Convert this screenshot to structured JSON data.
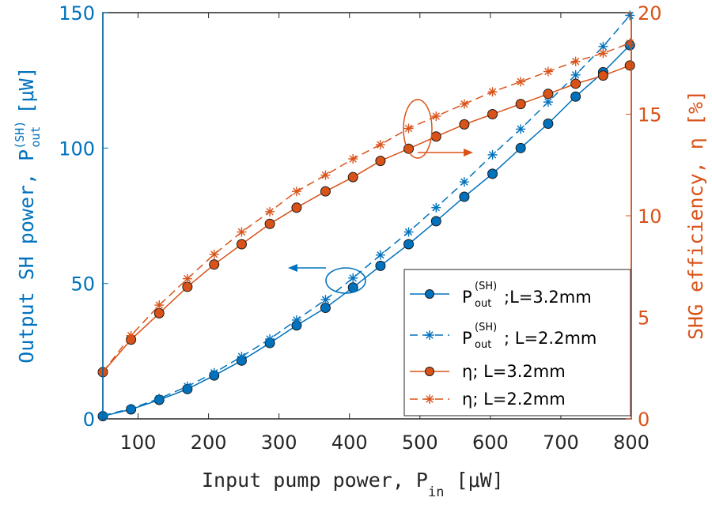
{
  "chart_data": {
    "type": "line",
    "x": [
      50,
      90,
      130,
      170,
      208,
      247,
      287,
      325,
      366,
      405,
      444,
      484,
      523,
      563,
      603,
      643,
      682,
      721,
      760,
      798
    ],
    "xlim": [
      50,
      800
    ],
    "x_ticks": [
      "100",
      "200",
      "300",
      "400",
      "500",
      "600",
      "700",
      "800"
    ],
    "y_left": {
      "lim": [
        0,
        150
      ],
      "ticks": [
        "0",
        "50",
        "100",
        "150"
      ]
    },
    "y_right": {
      "lim": [
        0,
        20
      ],
      "ticks": [
        "0",
        "5",
        "10",
        "15",
        "20"
      ]
    },
    "xlabel": {
      "main": "Input pump power, P",
      "sub": "in",
      "unit": " [μW]"
    },
    "ylabel_left": {
      "main": "Output SH power, P",
      "sup": "(SH)",
      "sub": "out",
      "unit": " [μW]"
    },
    "ylabel_right": "SHG efficiency, η [%]",
    "colors": {
      "blue": "#0072BD",
      "orange": "#D95319"
    },
    "grid": false,
    "legend_position": "bottom-right",
    "series": [
      {
        "name": "P(SH)out; L=3.2mm",
        "axis": "left",
        "marker": "circle",
        "line": "solid",
        "color": "#0072BD",
        "values": [
          1,
          3.5,
          7,
          11,
          16,
          21.5,
          28,
          34.5,
          41,
          48.5,
          56.5,
          64.5,
          73,
          82,
          90.5,
          100,
          109,
          119,
          128,
          138
        ]
      },
      {
        "name": "P(SH)out; L=2.2mm",
        "axis": "left",
        "marker": "asterisk",
        "line": "dashed",
        "color": "#0072BD",
        "values": [
          1.2,
          3.8,
          7.5,
          12,
          17,
          23,
          29.5,
          36.5,
          44,
          52,
          60.5,
          69,
          78,
          87.5,
          97.5,
          107,
          117,
          127,
          137.5,
          149
        ]
      },
      {
        "name": "η; L=3.2mm",
        "axis": "right",
        "marker": "circle",
        "line": "solid",
        "color": "#D95319",
        "values": [
          2.3,
          3.9,
          5.2,
          6.5,
          7.6,
          8.6,
          9.6,
          10.4,
          11.2,
          11.9,
          12.7,
          13.3,
          13.9,
          14.5,
          15.0,
          15.5,
          16.0,
          16.5,
          16.9,
          17.4
        ]
      },
      {
        "name": "η; L=2.2mm",
        "axis": "right",
        "marker": "asterisk",
        "line": "dashed",
        "color": "#D95319",
        "values": [
          2.3,
          4.1,
          5.6,
          6.9,
          8.1,
          9.2,
          10.2,
          11.2,
          12.0,
          12.8,
          13.5,
          14.3,
          14.9,
          15.5,
          16.1,
          16.6,
          17.1,
          17.6,
          18.0,
          18.5
        ]
      }
    ]
  },
  "legend": [
    {
      "main": "P",
      "sup": "(SH)",
      "sub": "out",
      "tail": ";L=3.2mm"
    },
    {
      "main": "P",
      "sup": "(SH)",
      "sub": "out",
      "tail": "; L=2.2mm"
    },
    {
      "main": "η",
      "tail": "; L=3.2mm"
    },
    {
      "main": "η",
      "tail": "; L=2.2mm"
    }
  ]
}
